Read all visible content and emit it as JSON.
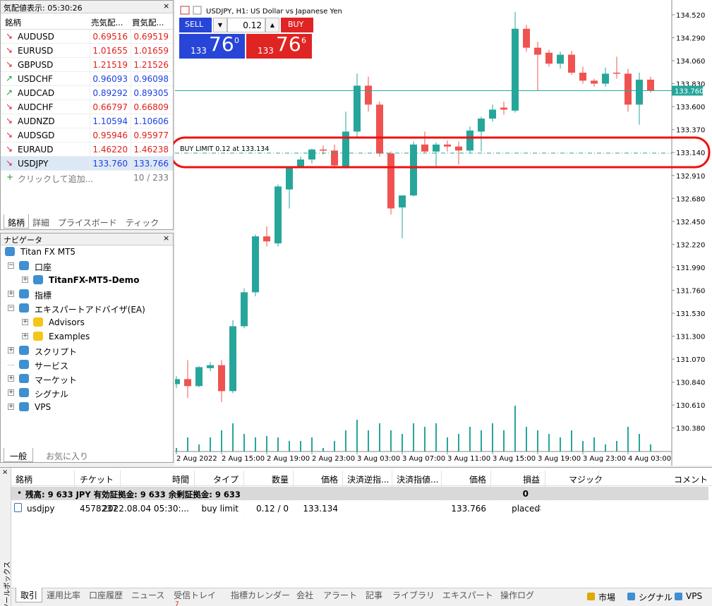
{
  "market_watch": {
    "title": "気配値表示: 05:30:26",
    "headers": [
      "銘柄",
      "売気配...",
      "買気配..."
    ],
    "rows": [
      {
        "symbol": "AUDUSD",
        "bid": "0.69516",
        "ask": "0.69519",
        "dir": "down",
        "color": "#e0201b"
      },
      {
        "symbol": "EURUSD",
        "bid": "1.01655",
        "ask": "1.01659",
        "dir": "down",
        "color": "#e0201b"
      },
      {
        "symbol": "GBPUSD",
        "bid": "1.21519",
        "ask": "1.21526",
        "dir": "down",
        "color": "#e0201b"
      },
      {
        "symbol": "USDCHF",
        "bid": "0.96093",
        "ask": "0.96098",
        "dir": "up",
        "color": "#1b3fe0"
      },
      {
        "symbol": "AUDCAD",
        "bid": "0.89292",
        "ask": "0.89305",
        "dir": "up",
        "color": "#1b3fe0"
      },
      {
        "symbol": "AUDCHF",
        "bid": "0.66797",
        "ask": "0.66809",
        "dir": "down",
        "color": "#e0201b"
      },
      {
        "symbol": "AUDNZD",
        "bid": "1.10594",
        "ask": "1.10606",
        "dir": "down",
        "color": "#1b3fe0"
      },
      {
        "symbol": "AUDSGD",
        "bid": "0.95946",
        "ask": "0.95977",
        "dir": "down",
        "color": "#e0201b"
      },
      {
        "symbol": "EURAUD",
        "bid": "1.46220",
        "ask": "1.46238",
        "dir": "down",
        "color": "#e0201b"
      },
      {
        "symbol": "USDJPY",
        "bid": "133.760",
        "ask": "133.766",
        "dir": "down",
        "color": "#1b3fe0"
      }
    ],
    "add_row": "クリックして追加...",
    "count": "10 / 233",
    "tabs": [
      "銘柄",
      "詳細",
      "プライスボード",
      "ティック"
    ]
  },
  "navigator": {
    "title": "ナビゲータ",
    "nodes": [
      {
        "label": "Titan FX MT5",
        "level": 0
      },
      {
        "label": "口座",
        "level": 1,
        "expand": "minus"
      },
      {
        "label": "TitanFX-MT5-Demo",
        "level": 2,
        "expand": "plus",
        "bold": true
      },
      {
        "label": "指標",
        "level": 1,
        "expand": "plus"
      },
      {
        "label": "エキスパートアドバイザ(EA)",
        "level": 1,
        "expand": "minus"
      },
      {
        "label": "Advisors",
        "level": 2,
        "expand": "plus"
      },
      {
        "label": "Examples",
        "level": 2,
        "expand": "plus"
      },
      {
        "label": "スクリプト",
        "level": 1,
        "expand": "plus"
      },
      {
        "label": "サービス",
        "level": 1
      },
      {
        "label": "マーケット",
        "level": 1,
        "expand": "plus"
      },
      {
        "label": "シグナル",
        "level": 1,
        "expand": "plus"
      },
      {
        "label": "VPS",
        "level": 1,
        "expand": "plus"
      }
    ],
    "tabs": [
      "一般",
      "お気に入り"
    ]
  },
  "trade_panel": {
    "sell": "SELL",
    "buy": "BUY",
    "lot": "0.12",
    "sell_price": {
      "big": "133",
      "main": "76",
      "sup": "0"
    },
    "buy_price": {
      "big": "133",
      "main": "76",
      "sup": "6"
    }
  },
  "chart_data": {
    "type": "candlestick",
    "title": "USDJPY, H1:  US Dollar vs Japanese Yen",
    "up_color": "#26a69a",
    "down_color": "#ef5350",
    "volume_color": "#26a69a",
    "x_labels": [
      "2 Aug 2022",
      "2 Aug 15:00",
      "2 Aug 19:00",
      "2 Aug 23:00",
      "3 Aug 03:00",
      "3 Aug 07:00",
      "3 Aug 11:00",
      "3 Aug 15:00",
      "3 Aug 19:00",
      "3 Aug 23:00",
      "4 Aug 03:00"
    ],
    "open": [
      130.82,
      130.87,
      130.8,
      130.98,
      131.01,
      130.75,
      131.4,
      131.74,
      132.3,
      132.23,
      132.77,
      133.0,
      133.07,
      133.17,
      133.16,
      133.0,
      133.35,
      133.81,
      133.62,
      133.13,
      132.59,
      132.71,
      133.22,
      133.15,
      133.22,
      133.2,
      133.16,
      133.35,
      133.48,
      133.59,
      133.56,
      134.38,
      134.19,
      134.14,
      134.03,
      134.12,
      133.94,
      133.86,
      133.83,
      133.94,
      133.93,
      133.62,
      133.87
    ],
    "high": [
      130.9,
      131.06,
      131.0,
      131.04,
      131.06,
      131.46,
      131.78,
      132.32,
      132.4,
      132.82,
      133.0,
      133.1,
      133.18,
      133.21,
      133.22,
      133.55,
      133.93,
      133.9,
      133.65,
      133.15,
      132.71,
      133.25,
      133.35,
      133.24,
      133.26,
      133.25,
      133.4,
      133.5,
      133.62,
      133.65,
      134.55,
      134.42,
      134.25,
      134.17,
      134.15,
      134.16,
      134.0,
      133.88,
      133.99,
      134.1,
      133.98,
      133.94,
      133.9
    ],
    "low": [
      130.78,
      130.68,
      130.79,
      130.95,
      130.64,
      130.73,
      131.38,
      131.7,
      132.2,
      132.2,
      132.58,
      132.99,
      133.03,
      133.12,
      132.98,
      132.98,
      133.3,
      133.55,
      133.1,
      132.52,
      132.28,
      132.7,
      133.14,
      133.0,
      133.15,
      133.02,
      133.14,
      133.15,
      133.45,
      133.52,
      133.54,
      134.15,
      133.76,
      134.0,
      133.98,
      133.92,
      133.83,
      133.8,
      133.8,
      133.88,
      133.55,
      133.42,
      133.74
    ],
    "close": [
      130.87,
      130.8,
      130.99,
      131.01,
      130.75,
      131.4,
      131.74,
      132.3,
      132.25,
      132.8,
      132.99,
      133.07,
      133.17,
      133.16,
      133.01,
      133.35,
      133.81,
      133.62,
      133.13,
      132.58,
      132.71,
      133.22,
      133.15,
      133.22,
      133.2,
      133.16,
      133.36,
      133.48,
      133.57,
      133.57,
      134.38,
      134.19,
      134.12,
      134.03,
      134.12,
      133.94,
      133.86,
      133.83,
      133.93,
      133.93,
      133.62,
      133.87,
      133.76
    ],
    "volume": [
      5,
      20,
      10,
      20,
      30,
      40,
      25,
      20,
      22,
      20,
      15,
      15,
      20,
      5,
      15,
      30,
      45,
      30,
      40,
      30,
      25,
      40,
      35,
      40,
      20,
      25,
      35,
      30,
      40,
      30,
      65,
      35,
      30,
      25,
      20,
      30,
      15,
      20,
      10,
      15,
      35,
      25,
      10
    ],
    "ylim": [
      130.145,
      134.668
    ],
    "yticks": [
      {
        "value": 134.52,
        "label": "134.520"
      },
      {
        "value": 134.29,
        "label": "134.290"
      },
      {
        "value": 134.06,
        "label": "134.060"
      },
      {
        "value": 133.83,
        "label": "133.830"
      },
      {
        "value": 133.6,
        "label": "133.600"
      },
      {
        "value": 133.37,
        "label": "133.370"
      },
      {
        "value": 133.14,
        "label": "133.140"
      },
      {
        "value": 132.91,
        "label": "132.910"
      },
      {
        "value": 132.68,
        "label": "132.680"
      },
      {
        "value": 132.45,
        "label": "132.450"
      },
      {
        "value": 132.22,
        "label": "132.220"
      },
      {
        "value": 131.99,
        "label": "131.990"
      },
      {
        "value": 131.76,
        "label": "131.760"
      },
      {
        "value": 131.53,
        "label": "131.530"
      },
      {
        "value": 131.3,
        "label": "131.300"
      },
      {
        "value": 131.07,
        "label": "131.070"
      },
      {
        "value": 130.84,
        "label": "130.840"
      },
      {
        "value": 130.61,
        "label": "130.610"
      },
      {
        "value": 130.38,
        "label": "130.380"
      }
    ],
    "current_price": {
      "value": 133.76,
      "label": "133.760"
    },
    "order_line": {
      "value": 133.134,
      "label": "BUY LIMIT 0.12 at 133.134"
    }
  },
  "toolbox": {
    "side_title": "ツールボックス",
    "headers": [
      "銘柄",
      "チケット",
      "時間",
      "タイプ",
      "数量",
      "価格",
      "決済逆指...",
      "決済指値...",
      "価格",
      "損益",
      "マジック",
      "コメント"
    ],
    "balance": "残高: 9 633 JPY  有効証拠金: 9 633  余剰証拠金: 9 633",
    "balance_profit": "0",
    "order": {
      "symbol": "usdjpy",
      "ticket": "4578237",
      "time": "2022.08.04 05:30:...",
      "type": "buy limit",
      "volume": "0.12 / 0",
      "price": "133.134",
      "current": "133.766",
      "status": "placed"
    },
    "tabs": [
      "取引",
      "運用比率",
      "口座履歴",
      "ニュース",
      "受信トレイ",
      "指標カレンダー",
      "会社",
      "アラート",
      "記事",
      "ライブラリ",
      "エキスパート",
      "操作ログ"
    ],
    "inbox_count": "7",
    "status": [
      "市場",
      "シグナル",
      "VPS"
    ]
  }
}
